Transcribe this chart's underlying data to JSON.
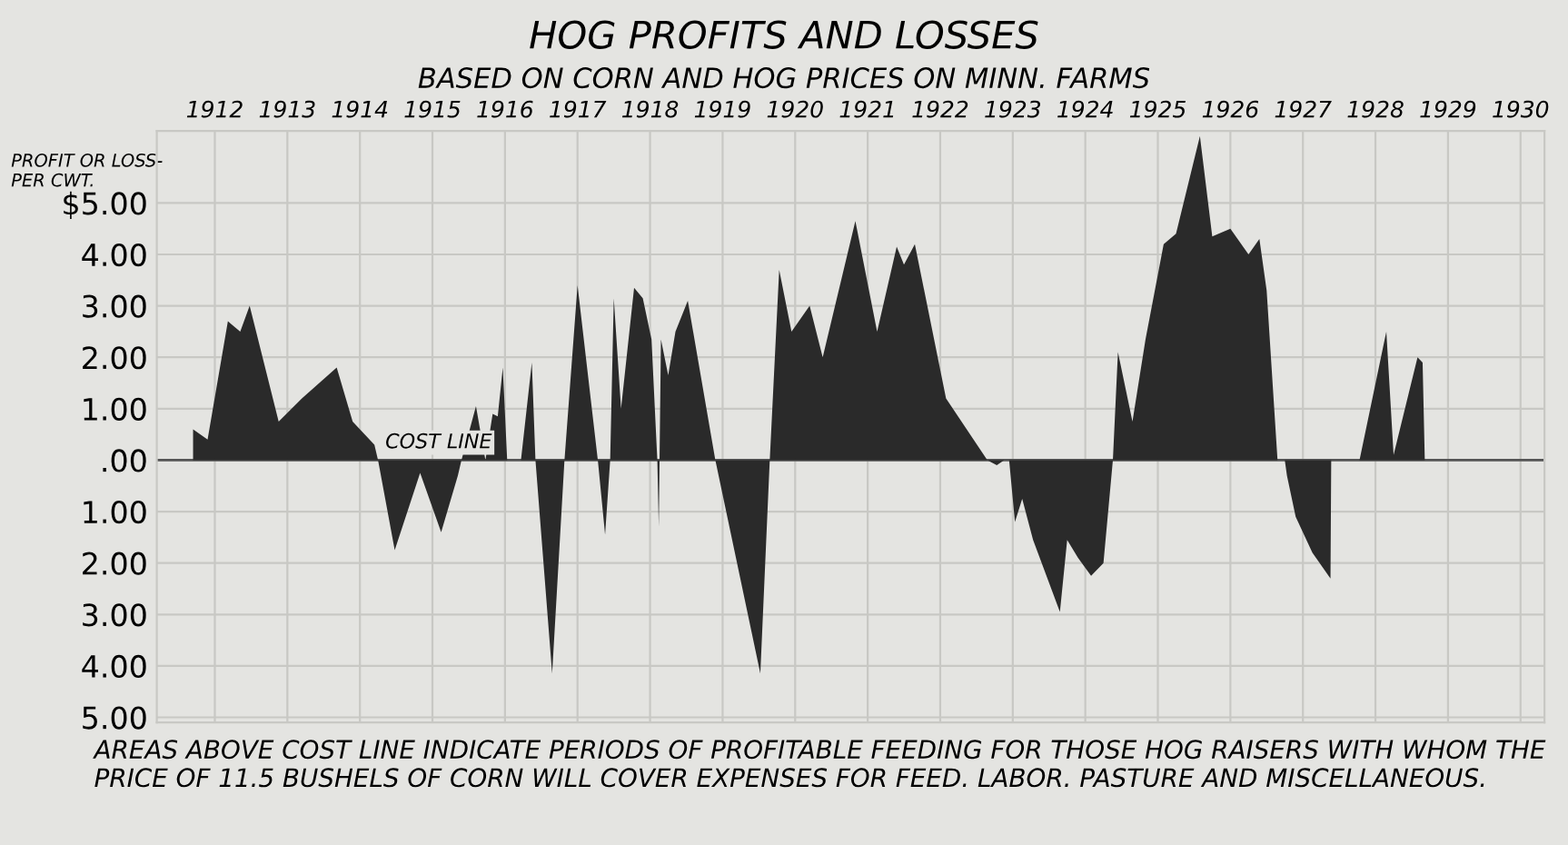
{
  "chart_data": {
    "type": "area",
    "title": "HOG PROFITS AND LOSSES",
    "subtitle": "BASED ON CORN AND HOG PRICES ON MINN. FARMS",
    "ylabel": "PROFIT OR LOSS-\nPER CWT.",
    "series": [
      {
        "color": "#2a2a2a",
        "x": [
          1911.7,
          1911.9,
          1912.18,
          1912.35,
          1912.48,
          1912.88,
          1913.2,
          1913.68,
          1913.9,
          1914.2,
          1914.25,
          1914.48,
          1914.83,
          1915.12,
          1915.35,
          1915.4,
          1915.6,
          1915.73,
          1915.83,
          1915.9,
          1915.97,
          1916.03,
          1916.22,
          1916.37,
          1916.42,
          1916.65,
          1916.82,
          1917.0,
          1917.28,
          1917.38,
          1917.45,
          1917.5,
          1917.6,
          1917.78,
          1917.9,
          1918.02,
          1918.1,
          1918.12,
          1918.15,
          1918.25,
          1918.35,
          1918.52,
          1918.9,
          1919.52,
          1919.65,
          1919.78,
          1919.95,
          1920.2,
          1920.38,
          1920.83,
          1921.13,
          1921.4,
          1921.5,
          1921.65,
          1922.08,
          1922.65,
          1922.78,
          1922.88,
          1922.95,
          1923.03,
          1923.13,
          1923.28,
          1923.65,
          1923.75,
          1923.9,
          1924.08,
          1924.25,
          1924.38,
          1924.45,
          1924.65,
          1924.83,
          1925.08,
          1925.25,
          1925.58,
          1925.75,
          1926.0,
          1926.25,
          1926.4,
          1926.5,
          1926.65,
          1926.75,
          1926.78,
          1926.9,
          1927.13,
          1927.38,
          1927.39,
          1927.78,
          1928.15,
          1928.25,
          1928.58,
          1928.65,
          1928.68
        ],
        "values": [
          0.6,
          0.4,
          2.7,
          2.5,
          3.0,
          0.75,
          1.2,
          1.8,
          0.75,
          0.3,
          0,
          -1.75,
          -0.25,
          -1.4,
          -0.3,
          0,
          1.05,
          0,
          0.9,
          0.85,
          1.8,
          0,
          0,
          1.9,
          0,
          -4.15,
          0,
          3.4,
          0,
          -1.45,
          0,
          3.15,
          1.0,
          3.35,
          3.15,
          2.35,
          0,
          -1.3,
          2.35,
          1.65,
          2.5,
          3.1,
          0,
          -4.15,
          0,
          3.7,
          2.5,
          3.0,
          2.0,
          4.65,
          2.5,
          4.15,
          3.8,
          4.2,
          1.2,
          0,
          -0.1,
          0,
          0,
          -1.2,
          -0.75,
          -1.55,
          -2.95,
          -1.55,
          -1.9,
          -2.25,
          -2.0,
          0,
          2.1,
          0.75,
          2.35,
          4.2,
          4.4,
          6.3,
          4.35,
          4.5,
          4.0,
          4.3,
          3.3,
          0,
          0,
          -0.3,
          -1.1,
          -1.8,
          -2.3,
          0,
          0,
          2.5,
          0.1,
          2.0,
          1.9,
          0
        ]
      }
    ],
    "xlim": [
      1911.2,
      1930.33
    ],
    "xticks": [
      1912,
      1913,
      1914,
      1915,
      1916,
      1917,
      1918,
      1919,
      1920,
      1921,
      1922,
      1923,
      1924,
      1925,
      1926,
      1927,
      1928,
      1929,
      1930
    ],
    "ylim": [
      -5.1,
      6.4
    ],
    "yticks": [
      {
        "value": 5,
        "label": "$5.00"
      },
      {
        "value": 4,
        "label": "4.00"
      },
      {
        "value": 3,
        "label": "3.00"
      },
      {
        "value": 2,
        "label": "2.00"
      },
      {
        "value": 1,
        "label": "1.00"
      },
      {
        "value": 0,
        "label": ".00"
      },
      {
        "value": -1,
        "label": "1.00"
      },
      {
        "value": -2,
        "label": "2.00"
      },
      {
        "value": -3,
        "label": "3.00"
      },
      {
        "value": -4,
        "label": "4.00"
      },
      {
        "value": -5,
        "label": "5.00"
      }
    ],
    "ref_lines": [
      {
        "axis": "y",
        "value": 0,
        "label": "COST LINE",
        "color": "#555555"
      }
    ],
    "grid": true,
    "annotations": [
      "AREAS ABOVE COST LINE INDICATE PERIODS OF PROFITABLE FEEDING FOR THOSE HOG RAISERS WITH WHOM THE PRICE OF 11.5 BUSHELS OF CORN WILL COVER EXPENSES FOR FEED. LABOR. PASTURE AND MISCELLANEOUS."
    ]
  }
}
